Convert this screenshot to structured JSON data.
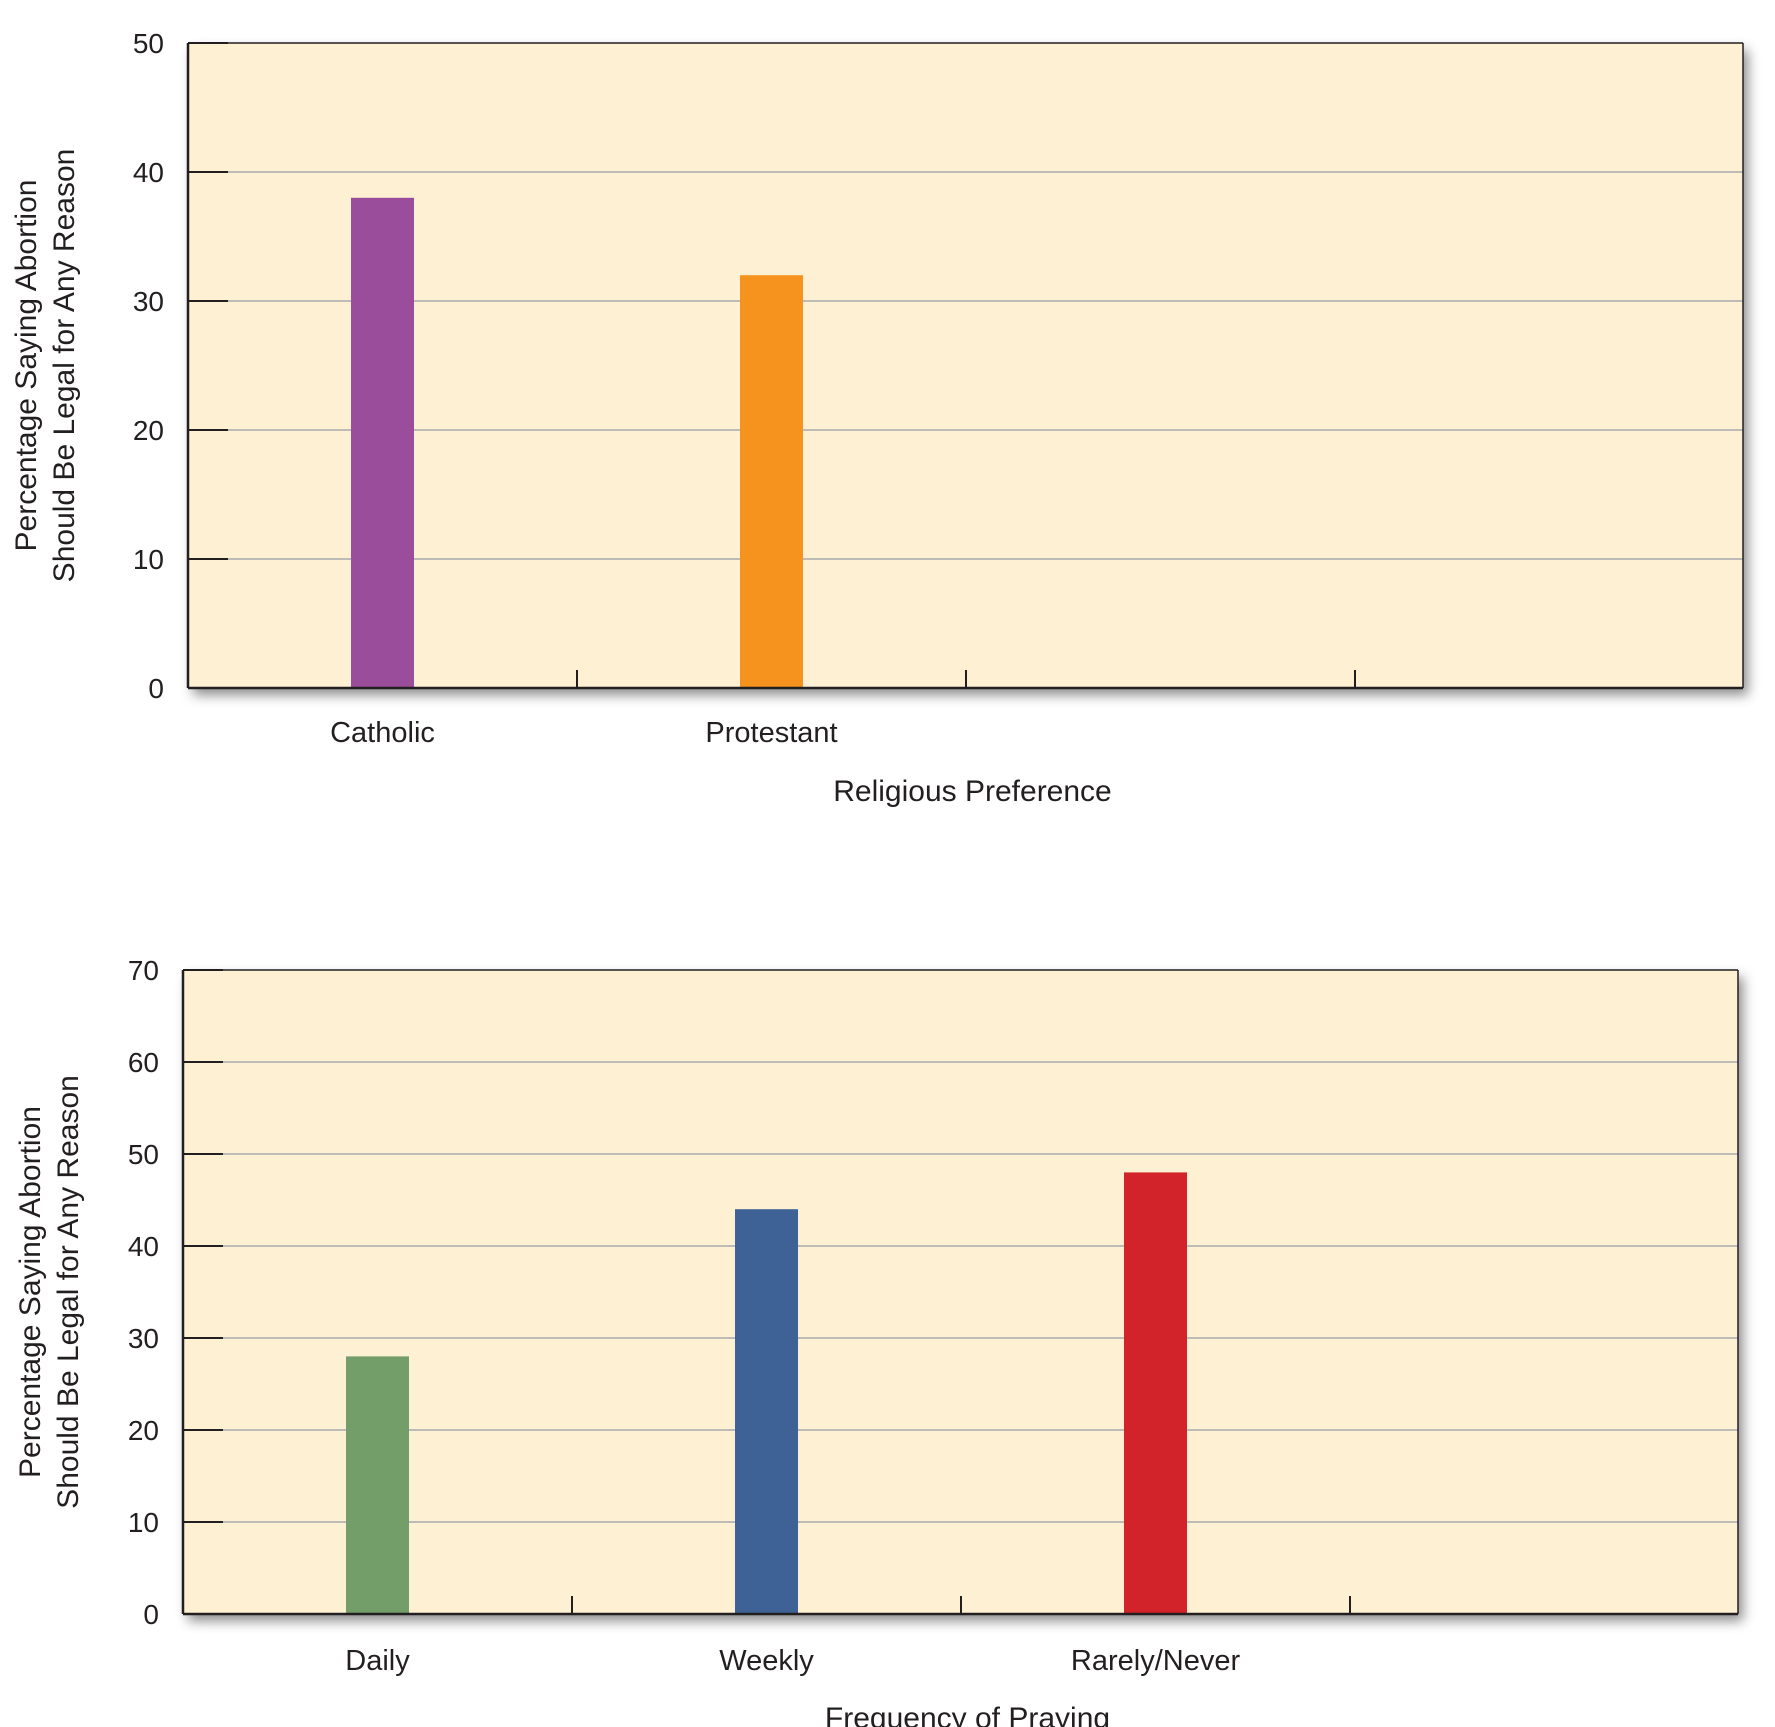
{
  "chart_data": [
    {
      "type": "bar",
      "categories": [
        "Catholic",
        "Protestant"
      ],
      "values": [
        38,
        32
      ],
      "colors": [
        "#9a4d9a",
        "#f6921e"
      ],
      "xlabel": "Religious Preference",
      "ylabel_lines": [
        "Percentage Saying Abortion",
        "Should Be Legal for Any Reason"
      ],
      "ylim": [
        0,
        50
      ],
      "yticks": [
        0,
        10,
        20,
        30,
        40,
        50
      ],
      "grid": true,
      "background": "#fef1d3",
      "legend": "none"
    },
    {
      "type": "bar",
      "categories": [
        "Daily",
        "Weekly",
        "Rarely/Never"
      ],
      "values": [
        28,
        44,
        48
      ],
      "colors": [
        "#739d69",
        "#3e6196",
        "#d2232a"
      ],
      "xlabel": "Frequency of Praying",
      "ylabel_lines": [
        "Percentage Saying Abortion",
        "Should Be Legal for Any Reason"
      ],
      "ylim": [
        0,
        70
      ],
      "yticks": [
        0,
        10,
        20,
        30,
        40,
        50,
        60,
        70
      ],
      "grid": true,
      "background": "#fef1d3",
      "legend": "none"
    }
  ]
}
